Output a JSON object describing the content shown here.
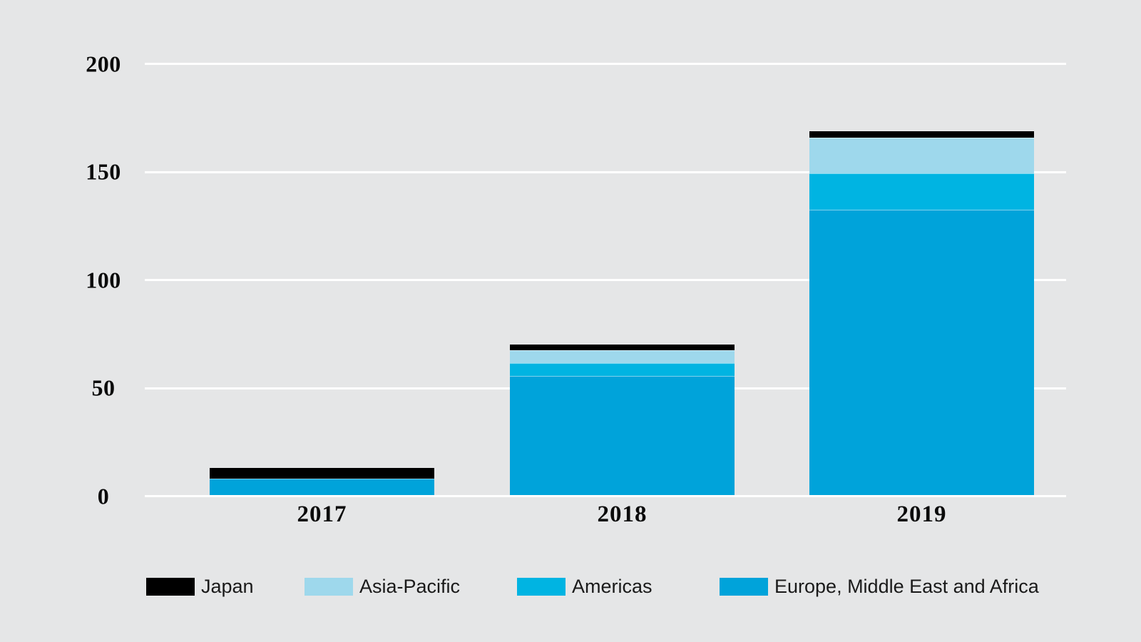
{
  "colors": {
    "background": "#e5e6e7",
    "gridline": "#ffffff",
    "axis_text": "#0b0b0b",
    "legend_text": "#1a1a1a"
  },
  "chart_data": {
    "type": "bar",
    "stacked": true,
    "title": "",
    "xlabel": "",
    "ylabel": "",
    "categories": [
      "2017",
      "2018",
      "2019"
    ],
    "series": [
      {
        "name": "Europe, Middle East and Africa",
        "color": "#00a3da",
        "values": [
          7.5,
          55,
          132
        ]
      },
      {
        "name": "Americas",
        "color": "#00b4e2",
        "values": [
          0,
          6,
          17
        ]
      },
      {
        "name": "Asia-Pacific",
        "color": "#9ed8ec",
        "values": [
          0,
          6,
          16.5
        ]
      },
      {
        "name": "Japan",
        "color": "#000000",
        "values": [
          5,
          2.7,
          2.7
        ]
      }
    ],
    "totals": [
      12.5,
      69.7,
      168.2
    ],
    "y_ticks": [
      0,
      50,
      100,
      150,
      200
    ],
    "ylim": [
      0,
      210
    ],
    "grid": "horizontal white lines",
    "legend_position": "bottom"
  },
  "legend": {
    "items": [
      {
        "label": "Japan",
        "color": "#000000"
      },
      {
        "label": "Asia-Pacific",
        "color": "#9ed8ec"
      },
      {
        "label": "Americas",
        "color": "#00b4e2"
      },
      {
        "label": "Europe, Middle East and Africa",
        "color": "#00a3da"
      }
    ]
  }
}
